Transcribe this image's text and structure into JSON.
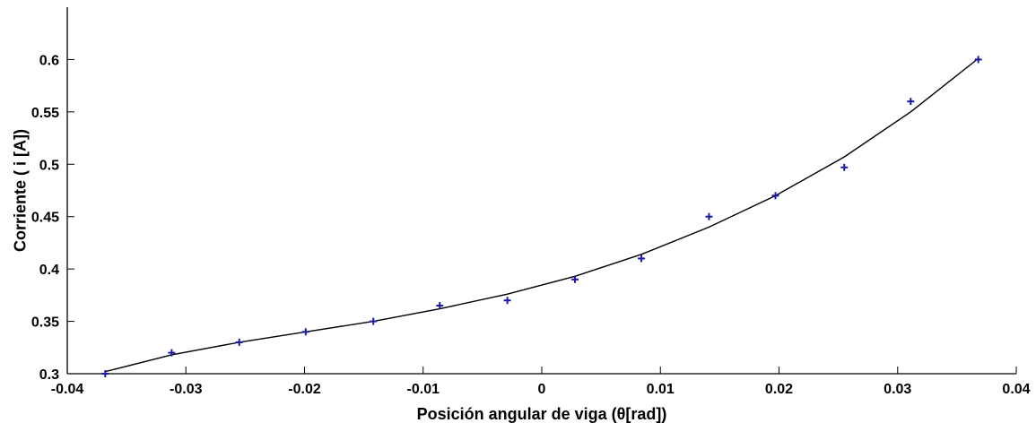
{
  "chart_data": {
    "type": "scatter",
    "title": "",
    "xlabel": "Posición angular de viga (θ[rad])",
    "ylabel": "Corriente ( i [A])",
    "xlim": [
      -0.04,
      0.04
    ],
    "ylim": [
      0.3,
      0.65
    ],
    "x_ticks": [
      -0.04,
      -0.03,
      -0.02,
      -0.01,
      0,
      0.01,
      0.02,
      0.03,
      0.04
    ],
    "x_tick_labels": [
      "-0.04",
      "-0.03",
      "-0.02",
      "-0.01",
      "0",
      "0.01",
      "0.02",
      "0.03",
      "0.04"
    ],
    "y_ticks": [
      0.3,
      0.35,
      0.4,
      0.45,
      0.5,
      0.55,
      0.6
    ],
    "y_tick_labels": [
      "0.3",
      "0.35",
      "0.4",
      "0.45",
      "0.5",
      "0.55",
      "0.6"
    ],
    "grid": false,
    "series": [
      {
        "kind": "markers",
        "marker": "plus",
        "color": "#1a1aa6",
        "x": [
          -0.0368,
          -0.0312,
          -0.0255,
          -0.0199,
          -0.0142,
          -0.0086,
          -0.0029,
          0.0028,
          0.0084,
          0.0141,
          0.0197,
          0.0255,
          0.0311,
          0.0368
        ],
        "y": [
          0.3,
          0.32,
          0.33,
          0.34,
          0.35,
          0.365,
          0.37,
          0.39,
          0.41,
          0.45,
          0.47,
          0.497,
          0.56,
          0.6
        ]
      },
      {
        "kind": "line",
        "color": "#000000",
        "x": [
          -0.0368,
          -0.0312,
          -0.0255,
          -0.0199,
          -0.0142,
          -0.0086,
          -0.0029,
          0.0028,
          0.0084,
          0.0141,
          0.0197,
          0.0255,
          0.0311,
          0.0368
        ],
        "y": [
          0.302,
          0.318,
          0.33,
          0.34,
          0.35,
          0.362,
          0.376,
          0.393,
          0.414,
          0.44,
          0.47,
          0.507,
          0.55,
          0.601
        ]
      }
    ]
  }
}
